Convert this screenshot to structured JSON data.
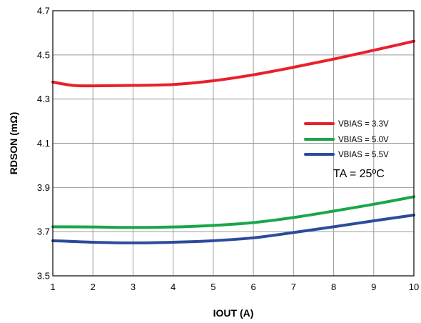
{
  "chart_data": {
    "type": "line",
    "title": "",
    "xlabel": "IOUT (A)",
    "ylabel": "RDSON (mΩ)",
    "xlim": [
      1,
      10
    ],
    "ylim": [
      3.5,
      4.7
    ],
    "xticks": [
      1,
      2,
      3,
      4,
      5,
      6,
      7,
      8,
      9,
      10
    ],
    "yticks": [
      3.5,
      3.7,
      3.9,
      4.1,
      4.3,
      4.5,
      4.7
    ],
    "ytick_labels": [
      "3.5",
      "3.7",
      "3.9",
      "4.1",
      "4.3",
      "4.5",
      "4.7"
    ],
    "grid": true,
    "legend_position": "right",
    "annotation": "TA = 25ºC",
    "series": [
      {
        "name": "VBIAS = 3.3V",
        "color": "#e8202a",
        "x": [
          1,
          1.5,
          2,
          3,
          4,
          5,
          6,
          7,
          8,
          9,
          10
        ],
        "y": [
          4.377,
          4.362,
          4.36,
          4.362,
          4.366,
          4.383,
          4.41,
          4.444,
          4.481,
          4.521,
          4.562
        ]
      },
      {
        "name": "VBIAS = 5.0V",
        "color": "#1aa64a",
        "x": [
          1,
          2,
          3,
          4,
          5,
          6,
          7,
          8,
          9,
          10
        ],
        "y": [
          3.722,
          3.721,
          3.719,
          3.721,
          3.728,
          3.741,
          3.764,
          3.793,
          3.824,
          3.858
        ]
      },
      {
        "name": "VBIAS = 5.5V",
        "color": "#2c4b9c",
        "x": [
          1,
          2,
          3,
          4,
          5,
          6,
          7,
          8,
          9,
          10
        ],
        "y": [
          3.659,
          3.652,
          3.649,
          3.652,
          3.659,
          3.672,
          3.696,
          3.722,
          3.749,
          3.775
        ]
      }
    ]
  }
}
